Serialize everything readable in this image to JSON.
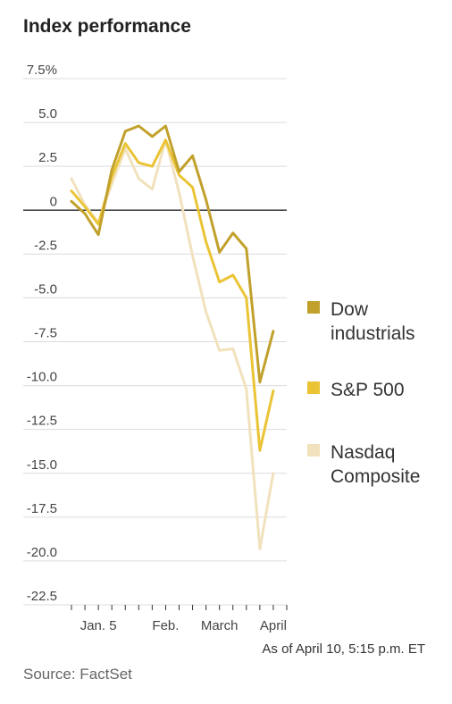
{
  "title": "Index performance",
  "note": "As of April 10, 5:15 p.m. ET",
  "source": "Source: FactSet",
  "chart_data": {
    "type": "line",
    "title": "Index performance",
    "ylim": [
      -22.5,
      7.5
    ],
    "yticks": [
      7.5,
      5.0,
      2.5,
      0,
      -2.5,
      -5.0,
      -7.5,
      -10.0,
      -12.5,
      -15.0,
      -17.5,
      -20.0,
      -22.5
    ],
    "ytick_labels": [
      "7.5%",
      "5.0",
      "2.5",
      "0",
      "-2.5",
      "-5.0",
      "-7.5",
      "-10.0",
      "-12.5",
      "-15.0",
      "-17.5",
      "-20.0",
      "-22.5"
    ],
    "x_ticks": [
      {
        "label": "Jan. 5",
        "x": 2
      },
      {
        "label": "Feb.",
        "x": 7
      },
      {
        "label": "March",
        "x": 11
      },
      {
        "label": "April",
        "x": 15
      }
    ],
    "grid": true,
    "legend_position": "right",
    "series": [
      {
        "name": "Dow industrials",
        "color": "#c1a12c",
        "x": [
          0,
          1,
          2,
          3,
          4,
          5,
          6,
          7,
          8,
          9,
          10,
          11,
          12,
          13,
          14,
          15,
          16
        ],
        "values": [
          0.5,
          -0.2,
          -1.4,
          2.3,
          4.5,
          4.8,
          4.2,
          4.8,
          2.2,
          3.1,
          0.6,
          -2.4,
          -1.3,
          -2.2,
          -9.8,
          -6.9,
          null
        ]
      },
      {
        "name": "S&P 500",
        "color": "#eac435",
        "x": [
          0,
          1,
          2,
          3,
          4,
          5,
          6,
          7,
          8,
          9,
          10,
          11,
          12,
          13,
          14,
          15,
          16
        ],
        "values": [
          1.1,
          0.2,
          -0.8,
          1.9,
          3.8,
          2.7,
          2.5,
          4.0,
          2.0,
          1.3,
          -1.8,
          -4.1,
          -3.7,
          -5.0,
          -13.7,
          -10.3,
          null
        ]
      },
      {
        "name": "Nasdaq Composite",
        "color": "#f1e2bd",
        "x": [
          0,
          1,
          2,
          3,
          4,
          5,
          6,
          7,
          8,
          9,
          10,
          11,
          12,
          13,
          14,
          15,
          16
        ],
        "values": [
          1.8,
          0.3,
          -0.7,
          1.5,
          3.5,
          1.8,
          1.2,
          4.0,
          1.0,
          -2.6,
          -5.8,
          -8.0,
          -7.9,
          -10.2,
          -19.3,
          -15.0,
          null
        ]
      }
    ]
  }
}
